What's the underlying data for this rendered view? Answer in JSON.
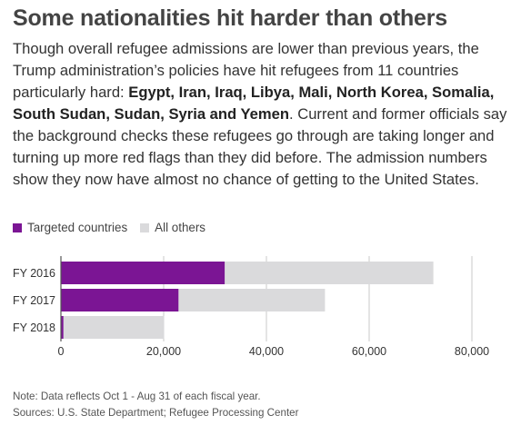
{
  "headline": "Some nationalities hit harder than others",
  "intro": {
    "text_before": "Though overall refugee admissions are lower than previous years, the Trump administration’s policies have hit refugees from 11 countries particularly hard: ",
    "countries_bold": "Egypt, Iran, Iraq, Libya, Mali, North Korea, Somalia, South Sudan, Sudan, Syria and Yemen",
    "text_after": ". Current and former officials say the background checks these refugees go through are taking longer and turning up more red flags than they did before. The admission numbers show they now have almost no chance of getting to the United States."
  },
  "legend": {
    "targeted": "Targeted countries",
    "others": "All others"
  },
  "colors": {
    "targeted": "#7b1594",
    "others": "#dadadc",
    "grid": "#c8c8c8",
    "text": "#333333"
  },
  "chart_data": {
    "type": "bar",
    "orientation": "horizontal",
    "stacked": true,
    "categories": [
      "FY 2016",
      "FY 2017",
      "FY 2018"
    ],
    "series": [
      {
        "name": "Targeted countries",
        "values": [
          31900,
          22900,
          500
        ]
      },
      {
        "name": "All others",
        "values": [
          40600,
          28500,
          19600
        ]
      }
    ],
    "xlim": [
      0,
      80000
    ],
    "xticks": [
      0,
      20000,
      40000,
      60000,
      80000
    ],
    "xtick_labels": [
      "0",
      "20,000",
      "40,000",
      "60,000",
      "80,000"
    ],
    "grid": true,
    "legend_position": "top-left"
  },
  "notes": {
    "note": "Note: Data reflects Oct 1 - Aug 31 of each fiscal year.",
    "sources": "Sources: U.S. State Department; Refugee Processing Center"
  }
}
